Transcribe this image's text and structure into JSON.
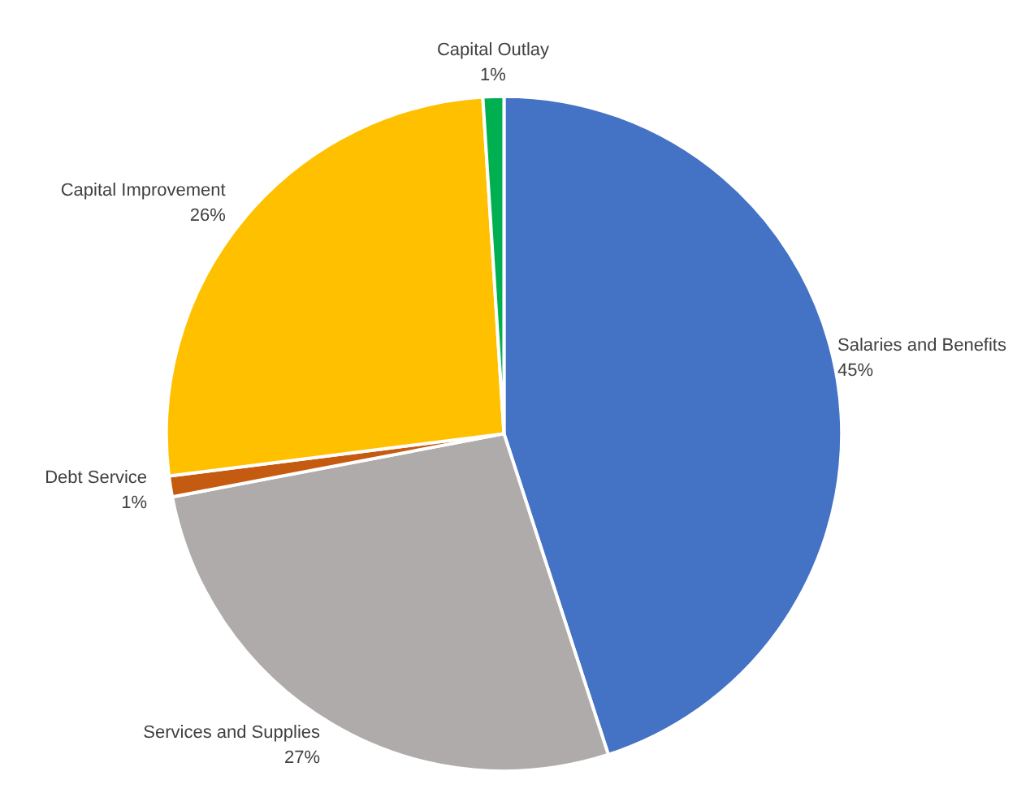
{
  "chart_data": {
    "type": "pie",
    "categories": [
      "Salaries and Benefits",
      "Services and Supplies",
      "Debt Service",
      "Capital Improvement",
      "Capital Outlay"
    ],
    "values": [
      45,
      27,
      1,
      26,
      1
    ],
    "colors": [
      "#4472c4",
      "#afabab",
      "#c55a11",
      "#ffc000",
      "#00b050"
    ],
    "value_labels": [
      "45%",
      "27%",
      "1%",
      "26%",
      "1%"
    ]
  }
}
